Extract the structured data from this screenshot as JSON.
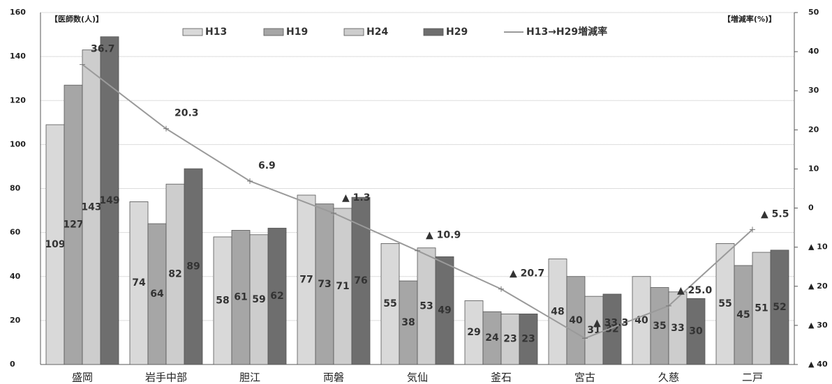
{
  "chart_data": {
    "type": "bar_line",
    "y_label": "【医師数(人)】",
    "y2_label": "【増減率(%)】",
    "categories": [
      "盛岡",
      "岩手中部",
      "胆江",
      "両磐",
      "気仙",
      "釜石",
      "宮古",
      "久慈",
      "二戸"
    ],
    "series": [
      {
        "name": "H13",
        "color": "#d9d9d9",
        "values": [
          109,
          74,
          58,
          77,
          55,
          29,
          48,
          40,
          55
        ]
      },
      {
        "name": "H19",
        "color": "#a6a6a6",
        "values": [
          127,
          64,
          61,
          73,
          38,
          24,
          40,
          35,
          45
        ]
      },
      {
        "name": "H24",
        "color": "#cdcdcd",
        "values": [
          143,
          82,
          59,
          71,
          53,
          23,
          31,
          33,
          51
        ]
      },
      {
        "name": "H29",
        "color": "#6e6e6e",
        "values": [
          149,
          89,
          62,
          76,
          49,
          23,
          32,
          30,
          52
        ]
      },
      {
        "name": "H13→H29増減率",
        "color": "#9a9a9a",
        "axis": "y2",
        "type": "line",
        "values": [
          36.7,
          20.3,
          6.9,
          -1.3,
          -10.9,
          -20.7,
          -33.3,
          -25.0,
          -5.5
        ],
        "value_labels": [
          "36.7",
          "20.3",
          "6.9",
          "▲ 1.3",
          "▲ 10.9",
          "▲ 20.7",
          "▲ 33.3",
          "▲ 25.0",
          "▲ 5.5"
        ]
      }
    ],
    "ylim": [
      0,
      160
    ],
    "yticks": [
      0,
      20,
      40,
      60,
      80,
      100,
      120,
      140,
      160
    ],
    "y2lim": [
      -40,
      50
    ],
    "y2ticks": [
      50,
      40,
      30,
      20,
      10,
      0,
      {
        "value": -10,
        "label": "▲ 10"
      },
      {
        "value": -20,
        "label": "▲ 20"
      },
      {
        "value": -30,
        "label": "▲ 30"
      },
      {
        "value": -40,
        "label": "▲ 40"
      }
    ],
    "grid": true
  }
}
